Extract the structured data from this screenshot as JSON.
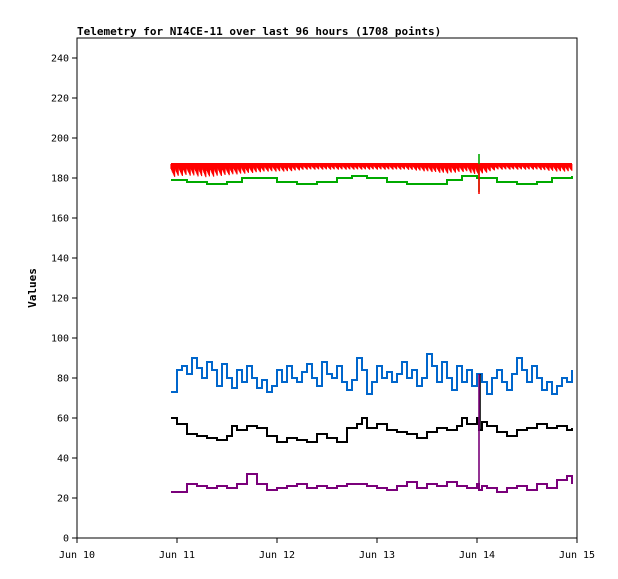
{
  "chart_data": {
    "type": "line",
    "title": "Telemetry for NI4CE-11 over last 96 hours (1708 points)",
    "xlabel": "",
    "ylabel": "Values",
    "ylim": [
      0,
      250
    ],
    "yticks": [
      0,
      20,
      40,
      60,
      80,
      100,
      120,
      140,
      160,
      180,
      200,
      220,
      240
    ],
    "xlim": [
      10,
      15
    ],
    "xticks": [
      {
        "value": 10,
        "label": "Jun 10"
      },
      {
        "value": 11,
        "label": "Jun 11"
      },
      {
        "value": 12,
        "label": "Jun 12"
      },
      {
        "value": 13,
        "label": "Jun 13"
      },
      {
        "value": 14,
        "label": "Jun 14"
      },
      {
        "value": 15,
        "label": "Jun 15"
      }
    ],
    "grid": false,
    "legend": "none",
    "series": [
      {
        "color": "#ff0000",
        "style": "band",
        "x": [
          10.94,
          11.1,
          11.3,
          11.5,
          11.7,
          11.9,
          12.1,
          12.3,
          12.5,
          12.7,
          12.9,
          13.1,
          13.3,
          13.5,
          13.7,
          13.9,
          14.0,
          14.2,
          14.4,
          14.6,
          14.8,
          14.95
        ],
        "low": [
          180,
          181,
          180,
          181,
          182,
          183,
          183,
          184,
          184,
          184,
          184,
          184,
          184,
          183,
          182,
          183,
          181,
          184,
          184,
          184,
          183,
          183
        ],
        "high": [
          187,
          187,
          187,
          187,
          187,
          187,
          187,
          187,
          187,
          187,
          187,
          187,
          187,
          187,
          187,
          187,
          187,
          187,
          187,
          187,
          187,
          187
        ]
      },
      {
        "color": "#00aa00",
        "x": [
          10.94,
          11.1,
          11.3,
          11.5,
          11.65,
          11.8,
          12.0,
          12.2,
          12.4,
          12.6,
          12.75,
          12.9,
          13.1,
          13.3,
          13.5,
          13.7,
          13.85,
          14.0,
          14.2,
          14.4,
          14.6,
          14.75,
          14.95
        ],
        "y": [
          179,
          178,
          177,
          178,
          180,
          180,
          178,
          177,
          178,
          180,
          181,
          180,
          178,
          177,
          177,
          179,
          181,
          180,
          178,
          177,
          178,
          180,
          181
        ]
      },
      {
        "color": "#0066cc",
        "x": [
          10.94,
          11.0,
          11.05,
          11.1,
          11.15,
          11.2,
          11.25,
          11.3,
          11.35,
          11.4,
          11.45,
          11.5,
          11.55,
          11.6,
          11.65,
          11.7,
          11.75,
          11.8,
          11.85,
          11.9,
          11.95,
          12.0,
          12.05,
          12.1,
          12.15,
          12.2,
          12.25,
          12.3,
          12.35,
          12.4,
          12.45,
          12.5,
          12.55,
          12.6,
          12.65,
          12.7,
          12.75,
          12.8,
          12.85,
          12.9,
          12.95,
          13.0,
          13.05,
          13.1,
          13.15,
          13.2,
          13.25,
          13.3,
          13.35,
          13.4,
          13.45,
          13.5,
          13.55,
          13.6,
          13.65,
          13.7,
          13.75,
          13.8,
          13.85,
          13.9,
          13.95,
          14.0,
          14.05,
          14.1,
          14.15,
          14.2,
          14.25,
          14.3,
          14.35,
          14.4,
          14.45,
          14.5,
          14.55,
          14.6,
          14.65,
          14.7,
          14.75,
          14.8,
          14.85,
          14.9,
          14.95
        ],
        "y": [
          73,
          84,
          86,
          82,
          90,
          85,
          80,
          88,
          84,
          76,
          87,
          80,
          75,
          84,
          78,
          86,
          80,
          75,
          79,
          73,
          76,
          84,
          78,
          86,
          80,
          78,
          83,
          87,
          80,
          76,
          88,
          82,
          80,
          86,
          78,
          74,
          79,
          90,
          84,
          72,
          78,
          86,
          80,
          83,
          78,
          82,
          88,
          80,
          84,
          76,
          80,
          92,
          86,
          78,
          88,
          80,
          74,
          86,
          78,
          84,
          76,
          82,
          78,
          72,
          80,
          84,
          78,
          74,
          82,
          90,
          84,
          78,
          86,
          80,
          74,
          78,
          72,
          76,
          80,
          78,
          84
        ]
      },
      {
        "color": "#000000",
        "x": [
          10.94,
          11.0,
          11.1,
          11.2,
          11.3,
          11.4,
          11.5,
          11.55,
          11.6,
          11.7,
          11.8,
          11.9,
          12.0,
          12.1,
          12.2,
          12.3,
          12.4,
          12.5,
          12.6,
          12.7,
          12.8,
          12.85,
          12.9,
          13.0,
          13.1,
          13.2,
          13.3,
          13.4,
          13.5,
          13.6,
          13.7,
          13.8,
          13.85,
          13.9,
          14.0,
          14.02,
          14.05,
          14.1,
          14.2,
          14.3,
          14.4,
          14.5,
          14.6,
          14.7,
          14.8,
          14.9,
          14.95
        ],
        "y": [
          60,
          57,
          52,
          51,
          50,
          49,
          51,
          56,
          54,
          56,
          55,
          51,
          48,
          50,
          49,
          48,
          52,
          50,
          48,
          55,
          57,
          60,
          55,
          57,
          54,
          53,
          52,
          50,
          53,
          55,
          54,
          56,
          60,
          57,
          60,
          54,
          58,
          56,
          53,
          51,
          54,
          55,
          57,
          55,
          56,
          54,
          55
        ]
      },
      {
        "color": "#7a007a",
        "x": [
          10.94,
          11.0,
          11.1,
          11.2,
          11.3,
          11.4,
          11.5,
          11.6,
          11.7,
          11.8,
          11.9,
          12.0,
          12.1,
          12.2,
          12.3,
          12.4,
          12.5,
          12.6,
          12.7,
          12.8,
          12.9,
          13.0,
          13.1,
          13.2,
          13.3,
          13.4,
          13.5,
          13.6,
          13.7,
          13.8,
          13.9,
          14.0,
          14.02,
          14.05,
          14.1,
          14.2,
          14.3,
          14.4,
          14.5,
          14.6,
          14.7,
          14.8,
          14.9,
          14.95
        ],
        "y": [
          23,
          23,
          27,
          26,
          25,
          26,
          25,
          27,
          32,
          27,
          24,
          25,
          26,
          27,
          25,
          26,
          25,
          26,
          27,
          27,
          26,
          25,
          24,
          26,
          28,
          25,
          27,
          26,
          28,
          26,
          25,
          27,
          24,
          26,
          25,
          23,
          25,
          26,
          24,
          27,
          25,
          29,
          31,
          27
        ]
      }
    ],
    "spikes": [
      {
        "color": "#00aa00",
        "x": 14.02,
        "low": 173,
        "high": 192
      },
      {
        "color": "#ff0000",
        "x": 14.02,
        "low": 172,
        "high": 187
      },
      {
        "color": "#000000",
        "x": 14.03,
        "low": 54,
        "high": 82
      },
      {
        "color": "#7a007a",
        "x": 14.02,
        "low": 24,
        "high": 82
      }
    ]
  }
}
